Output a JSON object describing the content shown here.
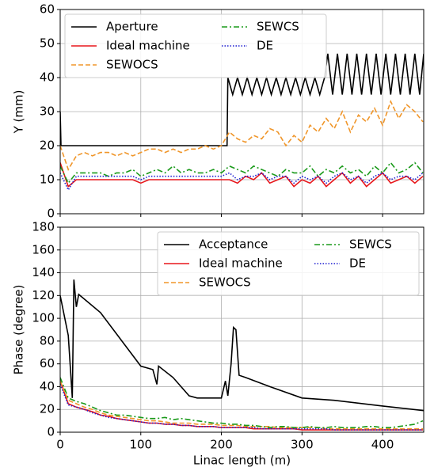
{
  "chart_data": [
    {
      "type": "line",
      "ylabel": "Y (mm)",
      "x": [
        0,
        10,
        20,
        30,
        40,
        50,
        60,
        70,
        80,
        90,
        100,
        110,
        120,
        130,
        140,
        150,
        160,
        170,
        180,
        190,
        200,
        210,
        220,
        230,
        240,
        250,
        260,
        270,
        280,
        290,
        300,
        310,
        320,
        330,
        340,
        350,
        360,
        370,
        380,
        390,
        400,
        410,
        420,
        430,
        440,
        450
      ],
      "xlim": [
        0,
        451
      ],
      "ylim": [
        0,
        60
      ],
      "xticks": [
        0,
        100,
        200,
        300,
        400
      ],
      "yticks": [
        0,
        10,
        20,
        30,
        40,
        50,
        60
      ],
      "grid": true,
      "legend": "upper left",
      "legend_columns": 2,
      "series": [
        {
          "name": "Aperture",
          "color": "#000000",
          "style": "solid",
          "x": [
            0,
            1,
            207,
            208,
            214,
            220,
            226,
            232,
            238,
            244,
            250,
            256,
            262,
            268,
            274,
            280,
            286,
            292,
            298,
            304,
            310,
            316,
            322,
            328,
            332,
            338,
            344,
            350,
            356,
            362,
            368,
            374,
            380,
            386,
            392,
            398,
            404,
            410,
            416,
            422,
            428,
            434,
            440,
            446,
            451
          ],
          "values": [
            30,
            20,
            20,
            40,
            35,
            40,
            35,
            40,
            35,
            40,
            35,
            40,
            35,
            40,
            35,
            40,
            35,
            40,
            35,
            40,
            35,
            40,
            35,
            40,
            47,
            35,
            47,
            35,
            47,
            35,
            47,
            35,
            47,
            35,
            47,
            35,
            47,
            35,
            47,
            35,
            47,
            35,
            47,
            35,
            47
          ]
        },
        {
          "name": "Ideal machine",
          "color": "#e8161b",
          "style": "solid",
          "values": [
            15,
            8,
            10,
            10,
            10,
            10,
            10,
            10,
            10,
            10,
            9,
            10,
            10,
            10,
            10,
            10,
            10,
            10,
            10,
            10,
            10,
            10,
            9,
            11,
            10,
            12,
            9,
            10,
            11,
            8,
            10,
            9,
            11,
            8,
            10,
            12,
            9,
            11,
            8,
            10,
            12,
            9,
            10,
            11,
            9,
            11
          ]
        },
        {
          "name": "SEWOCS",
          "color": "#f0962a",
          "style": "dashed",
          "values": [
            20,
            13,
            17,
            18,
            17,
            18,
            18,
            17,
            18,
            17,
            18,
            19,
            19,
            18,
            19,
            18,
            19,
            19,
            20,
            19,
            20,
            24,
            22,
            21,
            23,
            22,
            25,
            24,
            20,
            23,
            21,
            26,
            24,
            28,
            25,
            30,
            24,
            29,
            27,
            31,
            26,
            33,
            28,
            32,
            30,
            27
          ]
        },
        {
          "name": "SEWCS",
          "color": "#1a9a1a",
          "style": "dashdot",
          "values": [
            14,
            9,
            12,
            12,
            12,
            12,
            11,
            12,
            12,
            13,
            11,
            12,
            13,
            12,
            14,
            12,
            13,
            12,
            12,
            13,
            12,
            14,
            13,
            12,
            14,
            13,
            12,
            11,
            13,
            12,
            12,
            14,
            11,
            13,
            12,
            14,
            12,
            13,
            11,
            14,
            12,
            15,
            12,
            13,
            15,
            12
          ]
        },
        {
          "name": "DE",
          "color": "#1f1fd0",
          "style": "dotted",
          "values": [
            12,
            7,
            11,
            11,
            11,
            11,
            11,
            11,
            11,
            11,
            10,
            11,
            11,
            11,
            11,
            11,
            11,
            11,
            11,
            11,
            11,
            12,
            10,
            11,
            11,
            12,
            10,
            11,
            11,
            9,
            11,
            10,
            11,
            9,
            11,
            12,
            10,
            11,
            9,
            11,
            12,
            10,
            11,
            11,
            10,
            12
          ]
        }
      ]
    },
    {
      "type": "line",
      "ylabel": "Phase (degree)",
      "xlabel": "Linac length (m)",
      "x": [
        0,
        10,
        20,
        30,
        40,
        50,
        60,
        70,
        80,
        90,
        100,
        110,
        120,
        130,
        140,
        150,
        160,
        170,
        180,
        190,
        200,
        210,
        220,
        230,
        240,
        250,
        260,
        270,
        280,
        290,
        300,
        310,
        320,
        330,
        340,
        350,
        360,
        370,
        380,
        390,
        400,
        410,
        420,
        430,
        440,
        450
      ],
      "xlim": [
        0,
        451
      ],
      "ylim": [
        0,
        180
      ],
      "xticks": [
        0,
        100,
        200,
        300,
        400
      ],
      "yticks": [
        0,
        20,
        40,
        60,
        80,
        100,
        120,
        140,
        160,
        180
      ],
      "grid": true,
      "legend": "upper right",
      "legend_columns": 2,
      "series": [
        {
          "name": "Acceptance",
          "color": "#000000",
          "style": "solid",
          "x": [
            0,
            10,
            15,
            17,
            20,
            23,
            50,
            100,
            115,
            120,
            122,
            140,
            160,
            170,
            200,
            205,
            208,
            212,
            215,
            218,
            222,
            230,
            260,
            300,
            340,
            400,
            451
          ],
          "values": [
            120,
            85,
            30,
            134,
            110,
            121,
            105,
            58,
            55,
            42,
            58,
            48,
            32,
            30,
            30,
            45,
            32,
            60,
            92,
            90,
            50,
            48,
            40,
            30,
            28,
            23,
            19
          ]
        },
        {
          "name": "Ideal machine",
          "color": "#e8161b",
          "style": "solid",
          "values": [
            45,
            25,
            22,
            20,
            18,
            15,
            14,
            12,
            11,
            10,
            9,
            8,
            8,
            7,
            7,
            6,
            6,
            5,
            5,
            5,
            4,
            4,
            4,
            4,
            3,
            3,
            3,
            3,
            3,
            3,
            2,
            2,
            2,
            2,
            2,
            2,
            2,
            2,
            2,
            2,
            2,
            2,
            2,
            2,
            2,
            2
          ]
        },
        {
          "name": "SEWOCS",
          "color": "#f0962a",
          "style": "dashed",
          "values": [
            45,
            28,
            25,
            22,
            20,
            17,
            15,
            14,
            13,
            12,
            11,
            10,
            10,
            9,
            8,
            8,
            8,
            7,
            7,
            7,
            6,
            6,
            6,
            5,
            5,
            5,
            5,
            4,
            4,
            4,
            4,
            4,
            4,
            3,
            3,
            3,
            3,
            3,
            3,
            3,
            3,
            3,
            3,
            3,
            3,
            3
          ]
        },
        {
          "name": "SEWCS",
          "color": "#1a9a1a",
          "style": "dashdot",
          "values": [
            48,
            30,
            27,
            25,
            22,
            19,
            17,
            15,
            15,
            14,
            13,
            12,
            12,
            13,
            11,
            12,
            11,
            10,
            9,
            8,
            8,
            7,
            7,
            6,
            6,
            5,
            4,
            5,
            5,
            4,
            4,
            5,
            4,
            4,
            5,
            4,
            4,
            4,
            5,
            5,
            4,
            4,
            5,
            6,
            7,
            10
          ]
        },
        {
          "name": "DE",
          "color": "#1f1fd0",
          "style": "dotted",
          "values": [
            42,
            24,
            22,
            20,
            17,
            15,
            13,
            12,
            11,
            10,
            9,
            8,
            8,
            7,
            7,
            6,
            6,
            5,
            5,
            5,
            4,
            4,
            4,
            4,
            4,
            3,
            3,
            3,
            3,
            3,
            3,
            3,
            3,
            3,
            2,
            2,
            2,
            2,
            2,
            2,
            2,
            2,
            2,
            2,
            2,
            2
          ]
        }
      ]
    }
  ]
}
